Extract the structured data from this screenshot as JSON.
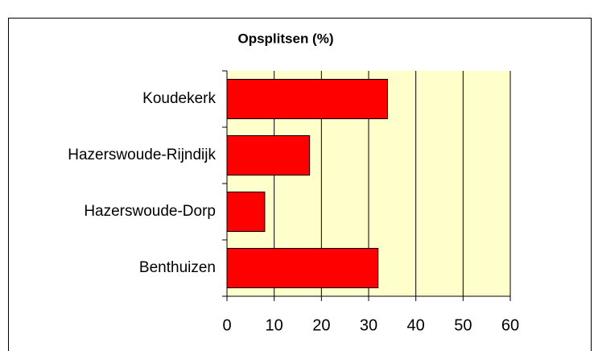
{
  "chart_data": {
    "type": "barh",
    "title": "Opsplitsen (%)",
    "categories": [
      "Koudekerk",
      "Hazerswoude-Rijndijk",
      "Hazerswoude-Dorp",
      "Benthuizen"
    ],
    "values": [
      34,
      17.5,
      8,
      32
    ],
    "color": "#ff0000",
    "xlim": [
      0,
      60
    ],
    "xticks": [
      0,
      10,
      20,
      30,
      40,
      50,
      60
    ],
    "grid": true
  }
}
